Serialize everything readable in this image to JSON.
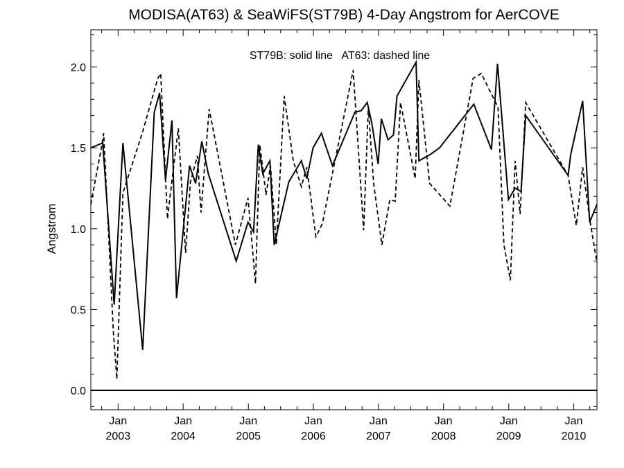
{
  "chart_data": {
    "type": "line",
    "title": "MODISA(AT63) & SeaWiFS(ST79B) 4-Day Angstrom for AerCOVE",
    "xlabel": "",
    "ylabel": "Angstrom",
    "annotation": "ST79B: solid line   AT63: dashed line",
    "xlim": [
      "2002-08-01",
      "2010-05-11"
    ],
    "ylim": [
      -0.12,
      2.23
    ],
    "reference_line": 0.0,
    "y_ticks": [
      {
        "value": 0.0,
        "label": "0.0"
      },
      {
        "value": 0.5,
        "label": "0.5"
      },
      {
        "value": 1.0,
        "label": "1.0"
      },
      {
        "value": 1.5,
        "label": "1.5"
      },
      {
        "value": 2.0,
        "label": "2.0"
      }
    ],
    "x_ticks": [
      {
        "date": "2003-01-01",
        "month": "Jan",
        "year": "2003"
      },
      {
        "date": "2004-01-01",
        "month": "Jan",
        "year": "2004"
      },
      {
        "date": "2005-01-01",
        "month": "Jan",
        "year": "2005"
      },
      {
        "date": "2006-01-01",
        "month": "Jan",
        "year": "2006"
      },
      {
        "date": "2007-01-01",
        "month": "Jan",
        "year": "2007"
      },
      {
        "date": "2008-01-01",
        "month": "Jan",
        "year": "2008"
      },
      {
        "date": "2009-01-01",
        "month": "Jan",
        "year": "2009"
      },
      {
        "date": "2010-01-01",
        "month": "Jan",
        "year": "2010"
      }
    ],
    "series": [
      {
        "name": "ST79B",
        "style": "solid",
        "points": [
          [
            "2002-08-01",
            1.5
          ],
          [
            "2002-10-07",
            1.53
          ],
          [
            "2002-12-10",
            0.53
          ],
          [
            "2003-01-28",
            1.53
          ],
          [
            "2003-05-19",
            0.25
          ],
          [
            "2003-07-23",
            1.72
          ],
          [
            "2003-08-22",
            1.84
          ],
          [
            "2003-09-24",
            1.3
          ],
          [
            "2003-10-30",
            1.67
          ],
          [
            "2003-11-25",
            0.57
          ],
          [
            "2004-02-06",
            1.39
          ],
          [
            "2004-03-11",
            1.28
          ],
          [
            "2004-04-15",
            1.54
          ],
          [
            "2004-05-21",
            1.34
          ],
          [
            "2004-10-25",
            0.8
          ],
          [
            "2004-12-30",
            1.04
          ],
          [
            "2005-01-30",
            0.98
          ],
          [
            "2005-02-26",
            1.52
          ],
          [
            "2005-03-23",
            1.34
          ],
          [
            "2005-05-02",
            1.42
          ],
          [
            "2005-05-26",
            0.9
          ],
          [
            "2005-08-16",
            1.29
          ],
          [
            "2005-10-25",
            1.42
          ],
          [
            "2005-11-25",
            1.31
          ],
          [
            "2005-12-30",
            1.5
          ],
          [
            "2006-02-15",
            1.59
          ],
          [
            "2006-04-18",
            1.39
          ],
          [
            "2006-08-22",
            1.72
          ],
          [
            "2006-09-26",
            1.73
          ],
          [
            "2006-10-30",
            1.78
          ],
          [
            "2006-11-25",
            1.65
          ],
          [
            "2006-12-30",
            1.4
          ],
          [
            "2007-01-17",
            1.68
          ],
          [
            "2007-02-24",
            1.55
          ],
          [
            "2007-03-26",
            1.58
          ],
          [
            "2007-04-15",
            1.82
          ],
          [
            "2007-07-31",
            2.03
          ],
          [
            "2007-08-16",
            1.42
          ],
          [
            "2007-10-20",
            1.46
          ],
          [
            "2007-12-10",
            1.5
          ],
          [
            "2008-06-19",
            1.77
          ],
          [
            "2008-09-26",
            1.49
          ],
          [
            "2008-10-30",
            2.02
          ],
          [
            "2008-12-30",
            1.18
          ],
          [
            "2009-02-06",
            1.25
          ],
          [
            "2009-03-11",
            1.23
          ],
          [
            "2009-04-06",
            1.7
          ],
          [
            "2009-11-30",
            1.33
          ],
          [
            "2009-12-15",
            1.46
          ],
          [
            "2010-02-20",
            1.79
          ],
          [
            "2010-03-31",
            1.04
          ],
          [
            "2010-05-11",
            1.15
          ]
        ]
      },
      {
        "name": "AT63",
        "style": "dashed",
        "points": [
          [
            "2002-08-01",
            1.15
          ],
          [
            "2002-09-29",
            1.5
          ],
          [
            "2002-10-12",
            1.59
          ],
          [
            "2002-12-05",
            0.37
          ],
          [
            "2002-12-25",
            0.07
          ],
          [
            "2003-01-28",
            1.22
          ],
          [
            "2003-05-19",
            1.6
          ],
          [
            "2003-08-12",
            1.93
          ],
          [
            "2003-08-28",
            1.96
          ],
          [
            "2003-10-05",
            1.06
          ],
          [
            "2003-10-25",
            1.25
          ],
          [
            "2003-12-05",
            1.62
          ],
          [
            "2004-01-15",
            0.85
          ],
          [
            "2004-02-11",
            1.29
          ],
          [
            "2004-03-21",
            1.45
          ],
          [
            "2004-04-10",
            1.1
          ],
          [
            "2004-05-26",
            1.74
          ],
          [
            "2004-10-20",
            0.9
          ],
          [
            "2004-12-30",
            1.19
          ],
          [
            "2005-02-10",
            0.66
          ],
          [
            "2005-03-06",
            1.52
          ],
          [
            "2005-04-10",
            1.21
          ],
          [
            "2005-05-05",
            1.39
          ],
          [
            "2005-06-07",
            0.9
          ],
          [
            "2005-07-21",
            1.82
          ],
          [
            "2005-09-10",
            1.42
          ],
          [
            "2005-10-25",
            1.26
          ],
          [
            "2005-11-25",
            1.38
          ],
          [
            "2006-01-15",
            0.95
          ],
          [
            "2006-02-20",
            1.03
          ],
          [
            "2006-08-12",
            1.98
          ],
          [
            "2006-10-10",
            0.99
          ],
          [
            "2006-11-05",
            1.75
          ],
          [
            "2006-12-05",
            1.28
          ],
          [
            "2007-01-20",
            0.9
          ],
          [
            "2007-03-06",
            1.18
          ],
          [
            "2007-04-05",
            1.17
          ],
          [
            "2007-05-05",
            1.78
          ],
          [
            "2007-07-26",
            1.31
          ],
          [
            "2007-08-16",
            1.92
          ],
          [
            "2007-10-15",
            1.28
          ],
          [
            "2008-02-06",
            1.14
          ],
          [
            "2008-06-15",
            1.93
          ],
          [
            "2008-07-31",
            1.96
          ],
          [
            "2008-11-02",
            1.75
          ],
          [
            "2008-12-05",
            0.9
          ],
          [
            "2009-01-10",
            0.68
          ],
          [
            "2009-02-06",
            1.42
          ],
          [
            "2009-03-06",
            1.09
          ],
          [
            "2009-04-06",
            1.78
          ],
          [
            "2009-11-30",
            1.33
          ],
          [
            "2010-01-15",
            1.02
          ],
          [
            "2010-02-20",
            1.38
          ],
          [
            "2010-03-31",
            1.06
          ],
          [
            "2010-05-11",
            0.79
          ]
        ]
      }
    ]
  }
}
